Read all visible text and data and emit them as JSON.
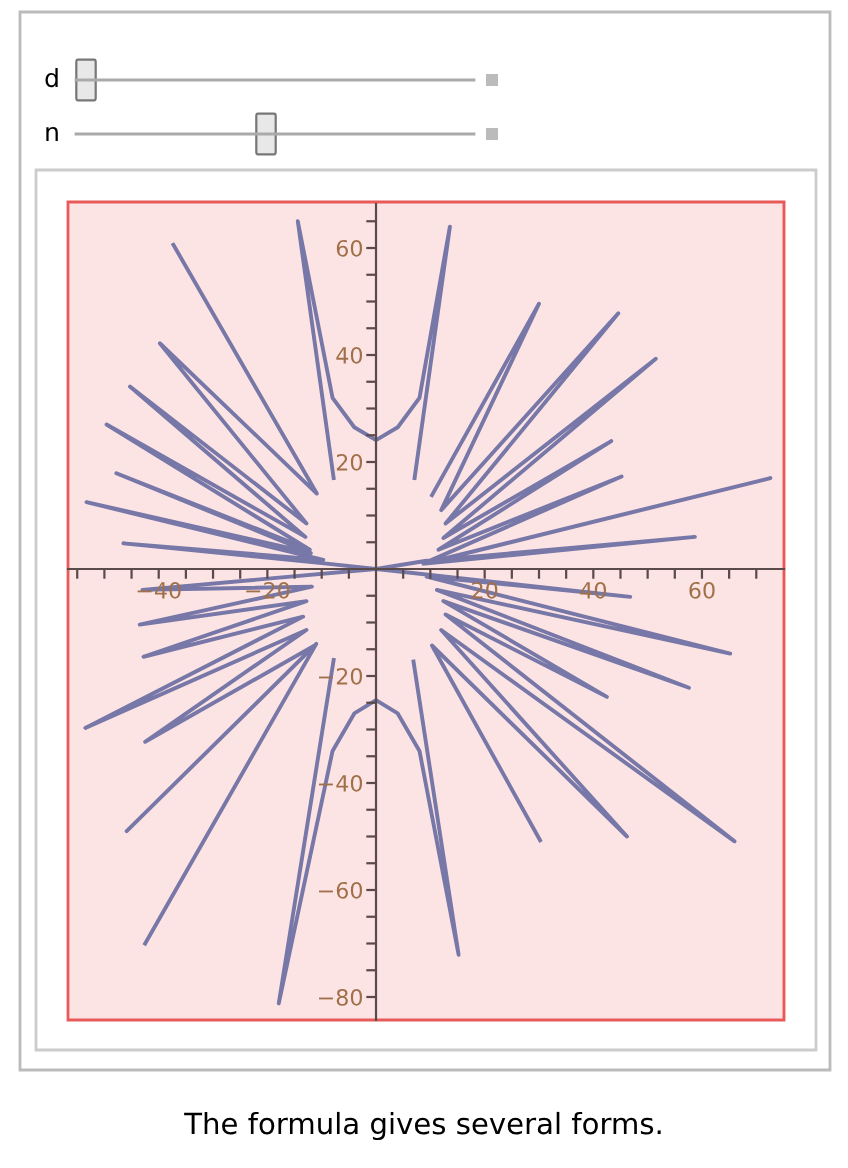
{
  "chart_data": {
    "type": "line",
    "annotations": [
      "d",
      "n",
      "The formula gives several forms."
    ],
    "xlim": [
      -56.7,
      75.1
    ],
    "ylim": [
      -84.3,
      68.6
    ],
    "xticks": [
      {
        "value": -55,
        "label": null
      },
      {
        "value": -50,
        "label": null
      },
      {
        "value": -45,
        "label": null
      },
      {
        "value": -40,
        "label": "−40"
      },
      {
        "value": -35,
        "label": null
      },
      {
        "value": -30,
        "label": null
      },
      {
        "value": -25,
        "label": null
      },
      {
        "value": -20,
        "label": "−20"
      },
      {
        "value": -15,
        "label": null
      },
      {
        "value": -10,
        "label": null
      },
      {
        "value": -5,
        "label": null
      },
      {
        "value": 5,
        "label": null
      },
      {
        "value": 10,
        "label": null
      },
      {
        "value": 15,
        "label": null
      },
      20,
      {
        "value": 25,
        "label": null
      },
      {
        "value": 30,
        "label": null
      },
      {
        "value": 35,
        "label": null
      },
      40,
      {
        "value": 45,
        "label": null
      },
      {
        "value": 50,
        "label": null
      },
      {
        "value": 55,
        "label": null
      },
      60,
      {
        "value": 65,
        "label": null
      },
      {
        "value": 70,
        "label": null
      }
    ],
    "yticks": [
      {
        "value": -80,
        "label": "−80"
      },
      {
        "value": -75,
        "label": null
      },
      {
        "value": -70,
        "label": null
      },
      {
        "value": -65,
        "label": null
      },
      {
        "value": -60,
        "label": "−60"
      },
      {
        "value": -55,
        "label": null
      },
      {
        "value": -50,
        "label": null
      },
      {
        "value": -45,
        "label": null
      },
      {
        "value": -40,
        "label": "−40"
      },
      {
        "value": -35,
        "label": null
      },
      {
        "value": -30,
        "label": null
      },
      {
        "value": -25,
        "label": null
      },
      {
        "value": -20,
        "label": "−20"
      },
      {
        "value": -15,
        "label": null
      },
      {
        "value": -10,
        "label": null
      },
      {
        "value": -5,
        "label": null
      },
      {
        "value": 5,
        "label": null
      },
      {
        "value": 10,
        "label": null
      },
      {
        "value": 15,
        "label": null
      },
      20,
      {
        "value": 25,
        "label": null
      },
      {
        "value": 30,
        "label": null
      },
      {
        "value": 35,
        "label": null
      },
      40,
      {
        "value": 45,
        "label": null
      },
      {
        "value": 50,
        "label": null
      },
      {
        "value": 55,
        "label": null
      },
      60,
      {
        "value": 65,
        "label": null
      }
    ],
    "grid": false,
    "legend": false,
    "marker": "none",
    "line_style": "solid",
    "series": [
      {
        "color": "#7777a8",
        "x": [
          30.2,
          10.3,
          46.2,
          12,
          66,
          12.8,
          42.5,
          12.4,
          57.6,
          11.2,
          65.2,
          9.3,
          46.8,
          0,
          9,
          58.7,
          9,
          72.6,
          8.7,
          45.2,
          11.5,
          43.3,
          12.4,
          51.5,
          12.8,
          44.6,
          12,
          30,
          10.3
        ],
        "values": [
          -50.7,
          -14.3,
          -50,
          -11.4,
          -50.9,
          -8.5,
          -23.9,
          -6,
          -22.2,
          -3.9,
          -15.8,
          -1.4,
          -5.2,
          0,
          1.5,
          6,
          1,
          17,
          1,
          17.3,
          3.6,
          23.9,
          5.8,
          39.3,
          8.5,
          47.8,
          11,
          49.6,
          13.8
        ]
      },
      {
        "color": "#7777a8",
        "x": [
          7.1,
          13.6,
          8,
          4,
          0,
          -4,
          -8,
          -14.4,
          -7.8
        ],
        "values": [
          17,
          64,
          32,
          26.5,
          24.1,
          26.5,
          32,
          65,
          17
        ]
      },
      {
        "color": "#7777a8",
        "x": [
          -37.3,
          -10.9,
          -39.8,
          -12.8,
          -45.3,
          -13,
          -49.6,
          -12.2,
          -47.8,
          -12,
          -53.3,
          -9.7,
          -46.5,
          -9.1,
          0,
          -43,
          -11.8,
          -43.5,
          -12.8,
          -42.8,
          -13.4,
          -53.5,
          -12.8,
          -42.5,
          -11.3,
          -45.9,
          -11,
          -42.5
        ],
        "values": [
          60.6,
          14.1,
          42.2,
          8.5,
          34.1,
          6,
          27,
          3.6,
          17.9,
          3,
          12.5,
          1.7,
          4.8,
          1,
          0,
          -3.9,
          -3.3,
          -10.4,
          -6,
          -16.4,
          -8.9,
          -29.7,
          -11.4,
          -32.3,
          -14.3,
          -49,
          -14,
          -70
        ]
      },
      {
        "color": "#7777a8",
        "x": [
          -7.8,
          -17.9,
          -8,
          -4,
          0,
          4,
          8,
          15.2,
          6.9
        ],
        "values": [
          -17,
          -81.2,
          -34,
          -27,
          -24.5,
          -27,
          -34,
          -72.1,
          -17.3
        ]
      }
    ]
  }
}
